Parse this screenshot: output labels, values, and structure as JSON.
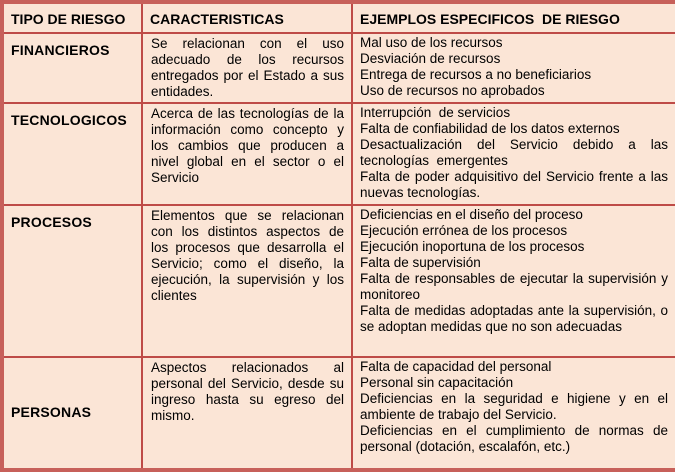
{
  "table": {
    "colors": {
      "background": "#FBE5D6",
      "border_outer": "#C7605A",
      "border_inner": "#BE4B47",
      "text": "#000000"
    },
    "headers": {
      "tipo": "TIPO DE RIESGO",
      "caracteristicas": "CARACTERISTICAS",
      "ejemplos": "EJEMPLOS ESPECIFICOS  DE RIESGO"
    },
    "rows": [
      {
        "tipo": "FINANCIEROS",
        "caracteristicas": "Se relacionan con el uso adecuado de los recursos entregados por el Estado a sus entidades.",
        "ejemplos": [
          "Mal uso de los recursos",
          "Desviación de recursos",
          "Entrega de recursos a no beneficiarios",
          "Uso de recursos no aprobados"
        ]
      },
      {
        "tipo": "TECNOLOGICOS",
        "caracteristicas": "Acerca de las tecnologías de la información como concepto y los cambios que producen a nivel global en el sector o el Servicio",
        "ejemplos": [
          "Interrupción  de servicios",
          "Falta de confiabilidad de los datos externos",
          "Desactualización del Servicio debido a las tecnologías  emergentes",
          "Falta de poder adquisitivo del Servicio frente a las nuevas tecnologías."
        ]
      },
      {
        "tipo": "PROCESOS",
        "caracteristicas": "Elementos que se relacionan con los distintos aspectos de los procesos que desarrolla el Servicio; como el diseño, la ejecución, la supervisión y los clientes",
        "ejemplos": [
          "Deficiencias en el diseño del proceso",
          "Ejecución errónea de los procesos",
          "Ejecución inoportuna de los procesos",
          "Falta de supervisión",
          "Falta de responsables de ejecutar la supervisión y monitoreo",
          "Falta de medidas adoptadas ante la supervisión, o se adoptan medidas que no son adecuadas"
        ]
      },
      {
        "tipo": "PERSONAS",
        "caracteristicas": "Aspectos relacionados al personal del Servicio, desde su ingreso hasta su egreso del mismo.",
        "ejemplos": [
          "Falta de capacidad del personal",
          "Personal sin capacitación",
          "Deficiencias en la seguridad e higiene y en el ambiente de trabajo del Servicio.",
          "Deficiencias en el cumplimiento de normas de personal (dotación, escalafón, etc.)"
        ]
      }
    ]
  }
}
